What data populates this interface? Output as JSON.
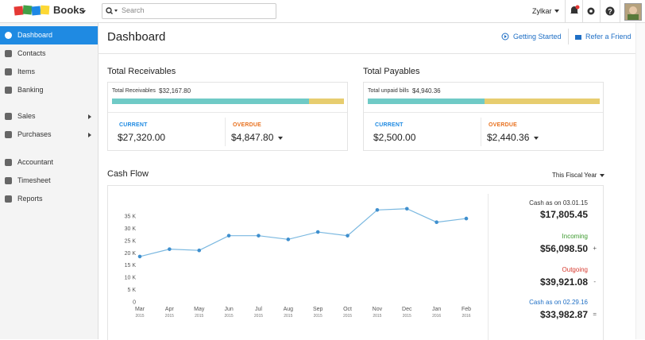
{
  "topbar": {
    "logo_text": "Books",
    "search_placeholder": "Search",
    "user": "Zylkar"
  },
  "sidebar": {
    "items": [
      "Dashboard",
      "Contacts",
      "Items",
      "Banking",
      "Sales",
      "Purchases",
      "Accountant",
      "Timesheet",
      "Reports"
    ]
  },
  "header": {
    "title": "Dashboard",
    "links": [
      "Getting Started",
      "Refer a Friend"
    ]
  },
  "receivables": {
    "title": "Total Receivables",
    "total_label": "Total Receivables",
    "total": "$32,167.80",
    "current_label": "CURRENT",
    "current": "$27,320.00",
    "overdue_label": "OVERDUE",
    "overdue": "$4,847.80"
  },
  "payables": {
    "title": "Total Payables",
    "total_label": "Total unpaid bills",
    "total": "$4,940.36",
    "current_label": "CURRENT",
    "current": "$2,500.00",
    "overdue_label": "OVERDUE",
    "overdue": "$2,440.36"
  },
  "cash_flow": {
    "type": "line",
    "title": "Cash Flow",
    "period": "This Fiscal Year",
    "color": "#7ab8e0",
    "categories": [
      "Mar",
      "Apr",
      "May",
      "Jun",
      "Jul",
      "Aug",
      "Sep",
      "Oct",
      "Nov",
      "Dec",
      "Jan",
      "Feb"
    ],
    "category_years": [
      "2015",
      "2015",
      "2015",
      "2015",
      "2015",
      "2015",
      "2015",
      "2015",
      "2015",
      "2015",
      "2016",
      "2016"
    ],
    "values": [
      18.5,
      21.5,
      21,
      27,
      27,
      25.5,
      28.5,
      27,
      37.5,
      38,
      32.5,
      34
    ],
    "ylim": [
      0,
      35
    ],
    "yticks": [
      0,
      {
        "value": 5,
        "label": "5 K"
      },
      {
        "value": 10,
        "label": "10 K"
      },
      {
        "value": 15,
        "label": "15 K"
      },
      {
        "value": 20,
        "label": "20 K"
      },
      {
        "value": 25,
        "label": "25 K"
      },
      {
        "value": 30,
        "label": "30 K"
      },
      {
        "value": 35,
        "label": "35 K"
      }
    ],
    "summary": [
      {
        "label": "Cash as on 03.01.15",
        "amount": "$17,805.45",
        "sign": ""
      },
      {
        "label": "Incoming",
        "amount": "$56,098.50",
        "sign": "+"
      },
      {
        "label": "Outgoing",
        "amount": "$39,921.08",
        "sign": "-"
      },
      {
        "label": "Cash as on 02.29.16",
        "amount": "$33,982.87",
        "sign": "="
      }
    ]
  }
}
